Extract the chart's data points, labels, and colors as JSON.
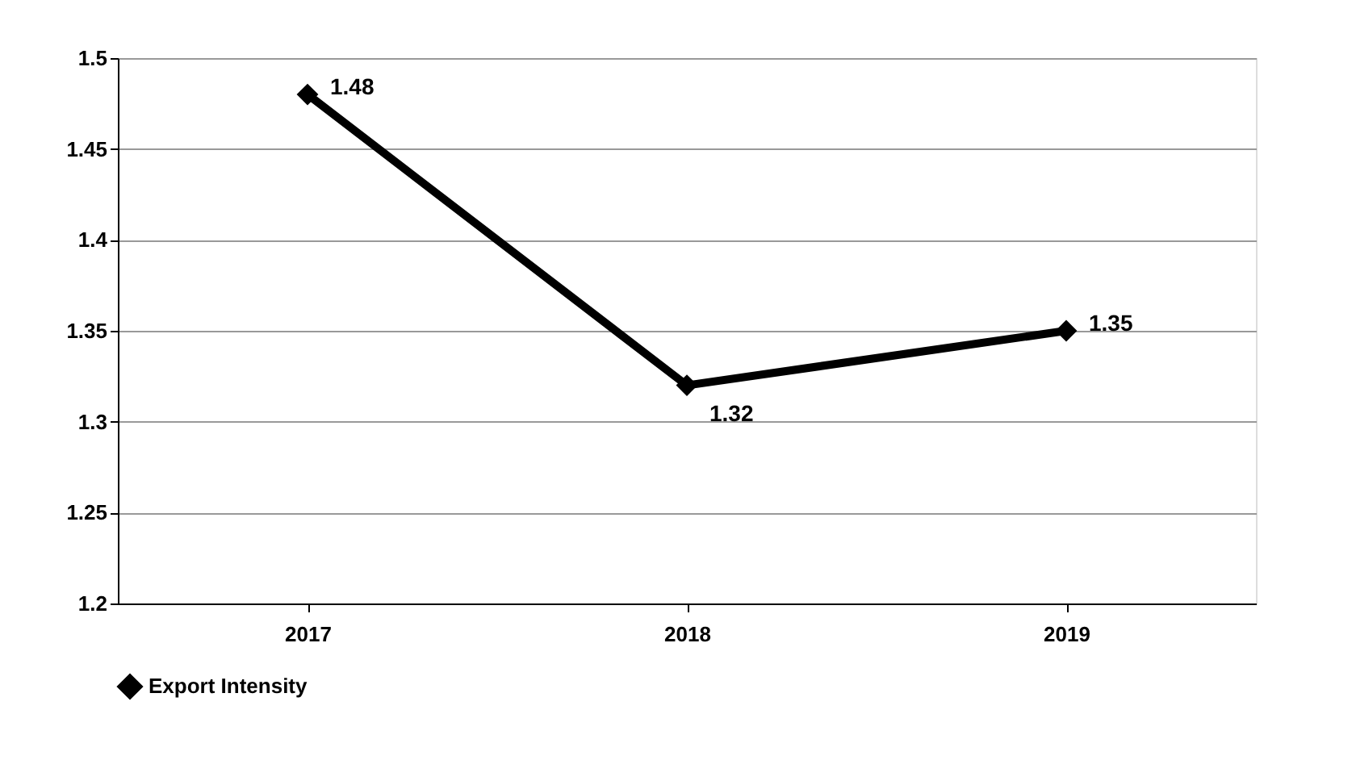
{
  "chart_data": {
    "type": "line",
    "categories": [
      "2017",
      "2018",
      "2019"
    ],
    "series": [
      {
        "name": "Export Intensity",
        "color": "#000000",
        "values": [
          1.48,
          1.32,
          1.35
        ]
      }
    ],
    "ylim": [
      1.2,
      1.5
    ],
    "yticks": [
      1.2,
      1.25,
      1.3,
      1.35,
      1.4,
      1.45,
      1.5
    ],
    "grid": "y",
    "legend": "bottom",
    "marker": "diamond",
    "line_style": "solid",
    "data_labels": true
  }
}
